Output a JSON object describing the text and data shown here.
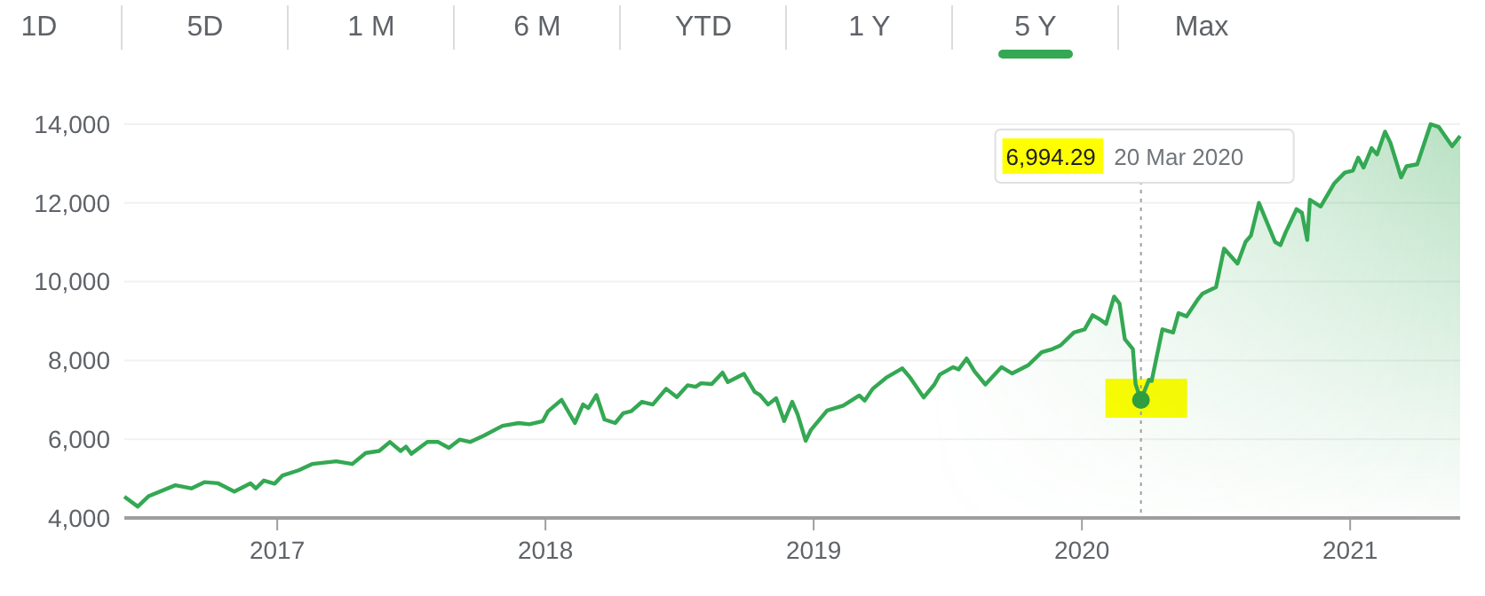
{
  "chart_data": {
    "type": "area",
    "x": [
      2016.43,
      2016.48,
      2016.52,
      2016.62,
      2016.68,
      2016.73,
      2016.78,
      2016.84,
      2016.9,
      2016.92,
      2016.95,
      2016.99,
      2017.02,
      2017.08,
      2017.13,
      2017.22,
      2017.28,
      2017.33,
      2017.38,
      2017.42,
      2017.46,
      2017.48,
      2017.5,
      2017.56,
      2017.6,
      2017.64,
      2017.68,
      2017.72,
      2017.77,
      2017.84,
      2017.9,
      2017.94,
      2017.99,
      2018.01,
      2018.06,
      2018.11,
      2018.14,
      2018.16,
      2018.19,
      2018.22,
      2018.26,
      2018.29,
      2018.32,
      2018.36,
      2018.4,
      2018.45,
      2018.49,
      2018.53,
      2018.56,
      2018.58,
      2018.62,
      2018.66,
      2018.68,
      2018.74,
      2018.78,
      2018.8,
      2018.83,
      2018.86,
      2018.89,
      2018.92,
      2018.94,
      2018.97,
      2018.99,
      2019.05,
      2019.11,
      2019.17,
      2019.19,
      2019.22,
      2019.27,
      2019.33,
      2019.36,
      2019.41,
      2019.45,
      2019.47,
      2019.52,
      2019.54,
      2019.57,
      2019.6,
      2019.64,
      2019.7,
      2019.74,
      2019.8,
      2019.85,
      2019.89,
      2019.92,
      2019.97,
      2020.01,
      2020.04,
      2020.07,
      2020.09,
      2020.12,
      2020.14,
      2020.16,
      2020.19,
      2020.2,
      2020.22,
      2020.25,
      2020.26,
      2020.3,
      2020.34,
      2020.36,
      2020.39,
      2020.43,
      2020.45,
      2020.5,
      2020.53,
      2020.58,
      2020.61,
      2020.63,
      2020.66,
      2020.72,
      2020.74,
      2020.76,
      2020.8,
      2020.82,
      2020.84,
      2020.85,
      2020.89,
      2020.94,
      2020.98,
      2021.01,
      2021.03,
      2021.05,
      2021.08,
      2021.1,
      2021.13,
      2021.15,
      2021.19,
      2021.21,
      2021.25,
      2021.3,
      2021.33,
      2021.38,
      2021.41
    ],
    "series": [
      {
        "color": "#34a853",
        "values": [
          4540,
          4290,
          4550,
          4830,
          4750,
          4910,
          4880,
          4670,
          4880,
          4750,
          4950,
          4870,
          5080,
          5210,
          5370,
          5440,
          5370,
          5650,
          5700,
          5930,
          5700,
          5810,
          5630,
          5930,
          5930,
          5780,
          5990,
          5930,
          6090,
          6340,
          6410,
          6380,
          6460,
          6710,
          7000,
          6410,
          6880,
          6790,
          7120,
          6500,
          6410,
          6660,
          6710,
          6950,
          6880,
          7280,
          7070,
          7370,
          7330,
          7420,
          7400,
          7690,
          7450,
          7660,
          7200,
          7120,
          6880,
          7040,
          6460,
          6950,
          6630,
          5960,
          6240,
          6730,
          6850,
          7110,
          6980,
          7280,
          7560,
          7800,
          7560,
          7060,
          7390,
          7640,
          7830,
          7770,
          8050,
          7720,
          7390,
          7830,
          7670,
          7880,
          8210,
          8290,
          8380,
          8710,
          8790,
          9150,
          9030,
          8930,
          9620,
          9450,
          8540,
          8290,
          7400,
          6994.29,
          7510,
          7480,
          8790,
          8710,
          9200,
          9120,
          9530,
          9700,
          9860,
          10840,
          10460,
          11010,
          11170,
          12000,
          11010,
          10930,
          11260,
          11840,
          11750,
          11060,
          12080,
          11910,
          12490,
          12770,
          12820,
          13150,
          12900,
          13390,
          13230,
          13810,
          13530,
          12650,
          12930,
          12980,
          14000,
          13930,
          13440,
          13700
        ]
      }
    ],
    "xlim": [
      2016.43,
      2021.41
    ],
    "xticks": [
      2017,
      2018,
      2019,
      2020,
      2021
    ],
    "ylim": [
      4000,
      14000
    ],
    "yticks": [
      {
        "value": 4000,
        "label": "4,000"
      },
      {
        "value": 6000,
        "label": "6,000"
      },
      {
        "value": 8000,
        "label": "8,000"
      },
      {
        "value": 10000,
        "label": "10,000"
      },
      {
        "value": 12000,
        "label": "12,000"
      },
      {
        "value": 14000,
        "label": "14,000"
      }
    ],
    "grid": "y",
    "ref_lines": [
      {
        "axis": "x",
        "value": 2020.22,
        "label": "20 Mar 2020",
        "line_style": "dotted",
        "color": "#9e9e9e"
      }
    ],
    "annotations": [
      "1D",
      "5D",
      "1 M",
      "6 M",
      "YTD",
      "1 Y",
      "5 Y",
      "Max",
      "6,994.29"
    ]
  }
}
